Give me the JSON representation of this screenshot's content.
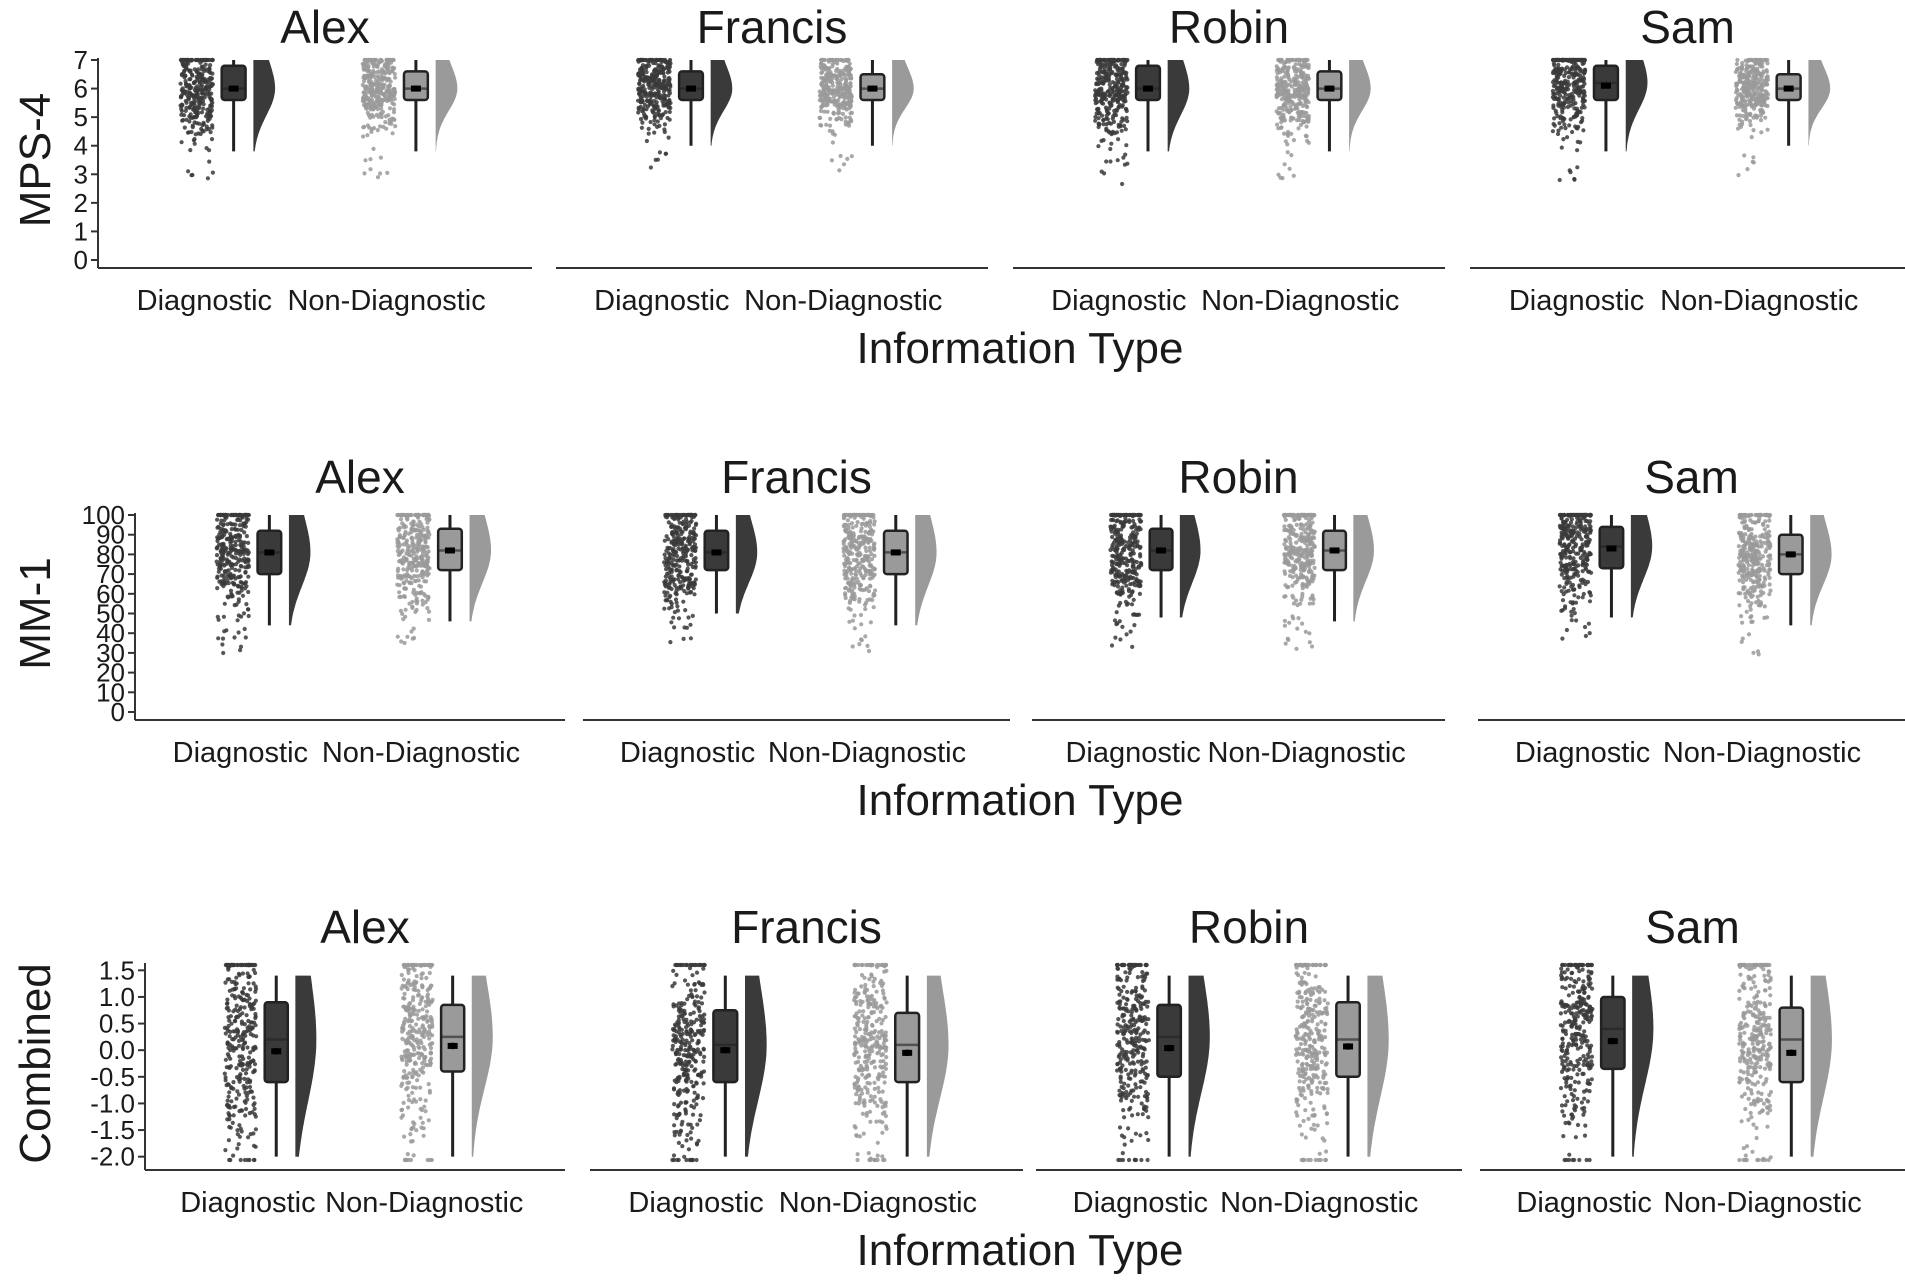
{
  "figure": {
    "x_axis_title": "Information Type",
    "categories": [
      "Diagnostic",
      "Non-Diagnostic"
    ],
    "panel_names": [
      "Alex",
      "Francis",
      "Robin",
      "Sam"
    ],
    "colors": {
      "diagnostic": "#3a3a3a",
      "non_diagnostic": "#9a9a9a",
      "axis": "#333333"
    }
  },
  "chart_data": [
    {
      "type": "raincloud",
      "ylabel": "MPS-4",
      "xlabel": "Information Type",
      "ylim": [
        0,
        7
      ],
      "yticks": [
        "0",
        "1",
        "2",
        "3",
        "4",
        "5",
        "6",
        "7"
      ],
      "tick_values": [
        0,
        1,
        2,
        3,
        4,
        5,
        6,
        7
      ],
      "categories": [
        "Diagnostic",
        "Non-Diagnostic"
      ],
      "panels": [
        {
          "name": "Alex",
          "series": [
            {
              "category": "Diagnostic",
              "min": 3.8,
              "q1": 5.6,
              "median": 6.0,
              "q3": 6.8,
              "max": 7.0,
              "mean": 6.0,
              "se": 0.1
            },
            {
              "category": "Non-Diagnostic",
              "min": 3.8,
              "q1": 5.6,
              "median": 6.0,
              "q3": 6.6,
              "max": 7.0,
              "mean": 6.0,
              "se": 0.1
            }
          ]
        },
        {
          "name": "Francis",
          "series": [
            {
              "category": "Diagnostic",
              "min": 4.0,
              "q1": 5.6,
              "median": 6.0,
              "q3": 6.6,
              "max": 7.0,
              "mean": 6.0,
              "se": 0.1
            },
            {
              "category": "Non-Diagnostic",
              "min": 4.0,
              "q1": 5.6,
              "median": 6.0,
              "q3": 6.5,
              "max": 7.0,
              "mean": 6.0,
              "se": 0.1
            }
          ]
        },
        {
          "name": "Robin",
          "series": [
            {
              "category": "Diagnostic",
              "min": 3.8,
              "q1": 5.6,
              "median": 6.0,
              "q3": 6.8,
              "max": 7.0,
              "mean": 6.0,
              "se": 0.1
            },
            {
              "category": "Non-Diagnostic",
              "min": 3.8,
              "q1": 5.6,
              "median": 6.0,
              "q3": 6.6,
              "max": 7.0,
              "mean": 6.0,
              "se": 0.1
            }
          ]
        },
        {
          "name": "Sam",
          "series": [
            {
              "category": "Diagnostic",
              "min": 3.8,
              "q1": 5.6,
              "median": 6.2,
              "q3": 6.8,
              "max": 7.0,
              "mean": 6.1,
              "se": 0.1
            },
            {
              "category": "Non-Diagnostic",
              "min": 4.0,
              "q1": 5.6,
              "median": 6.0,
              "q3": 6.5,
              "max": 7.0,
              "mean": 6.0,
              "se": 0.1
            }
          ]
        }
      ]
    },
    {
      "type": "raincloud",
      "ylabel": "MM-1",
      "xlabel": "Information Type",
      "ylim": [
        0,
        100
      ],
      "yticks": [
        "0",
        "10",
        "20",
        "30",
        "40",
        "50",
        "60",
        "70",
        "80",
        "90",
        "100"
      ],
      "tick_values": [
        0,
        10,
        20,
        30,
        40,
        50,
        60,
        70,
        80,
        90,
        100
      ],
      "categories": [
        "Diagnostic",
        "Non-Diagnostic"
      ],
      "panels": [
        {
          "name": "Alex",
          "series": [
            {
              "category": "Diagnostic",
              "min": 44,
              "q1": 70,
              "median": 81,
              "q3": 92,
              "max": 100,
              "mean": 81,
              "se": 1.5
            },
            {
              "category": "Non-Diagnostic",
              "min": 46,
              "q1": 72,
              "median": 82,
              "q3": 93,
              "max": 100,
              "mean": 82,
              "se": 1.5
            }
          ]
        },
        {
          "name": "Francis",
          "series": [
            {
              "category": "Diagnostic",
              "min": 50,
              "q1": 72,
              "median": 81,
              "q3": 92,
              "max": 100,
              "mean": 81,
              "se": 1.5
            },
            {
              "category": "Non-Diagnostic",
              "min": 44,
              "q1": 70,
              "median": 81,
              "q3": 92,
              "max": 100,
              "mean": 81,
              "se": 1.5
            }
          ]
        },
        {
          "name": "Robin",
          "series": [
            {
              "category": "Diagnostic",
              "min": 48,
              "q1": 72,
              "median": 82,
              "q3": 93,
              "max": 100,
              "mean": 82,
              "se": 1.5
            },
            {
              "category": "Non-Diagnostic",
              "min": 46,
              "q1": 72,
              "median": 82,
              "q3": 92,
              "max": 100,
              "mean": 82,
              "se": 1.5
            }
          ]
        },
        {
          "name": "Sam",
          "series": [
            {
              "category": "Diagnostic",
              "min": 48,
              "q1": 73,
              "median": 84,
              "q3": 94,
              "max": 100,
              "mean": 83,
              "se": 1.5
            },
            {
              "category": "Non-Diagnostic",
              "min": 44,
              "q1": 70,
              "median": 80,
              "q3": 90,
              "max": 100,
              "mean": 80,
              "se": 1.5
            }
          ]
        }
      ]
    },
    {
      "type": "raincloud",
      "ylabel": "Combined",
      "xlabel": "Information Type",
      "ylim": [
        -2.1,
        1.6
      ],
      "yticks": [
        "-2.0",
        "-1.5",
        "-1.0",
        "-0.5",
        "0.0",
        "0.5",
        "1.0",
        "1.5"
      ],
      "tick_values": [
        -2.0,
        -1.5,
        -1.0,
        -0.5,
        0.0,
        0.5,
        1.0,
        1.5
      ],
      "categories": [
        "Diagnostic",
        "Non-Diagnostic"
      ],
      "panels": [
        {
          "name": "Alex",
          "series": [
            {
              "category": "Diagnostic",
              "min": -2.0,
              "q1": -0.6,
              "median": 0.2,
              "q3": 0.9,
              "max": 1.4,
              "mean": -0.02,
              "se": 0.06
            },
            {
              "category": "Non-Diagnostic",
              "min": -2.0,
              "q1": -0.4,
              "median": 0.25,
              "q3": 0.85,
              "max": 1.4,
              "mean": 0.08,
              "se": 0.06
            }
          ]
        },
        {
          "name": "Francis",
          "series": [
            {
              "category": "Diagnostic",
              "min": -2.0,
              "q1": -0.6,
              "median": 0.1,
              "q3": 0.75,
              "max": 1.4,
              "mean": 0.0,
              "se": 0.06
            },
            {
              "category": "Non-Diagnostic",
              "min": -2.0,
              "q1": -0.6,
              "median": 0.1,
              "q3": 0.7,
              "max": 1.4,
              "mean": -0.05,
              "se": 0.06
            }
          ]
        },
        {
          "name": "Robin",
          "series": [
            {
              "category": "Diagnostic",
              "min": -2.0,
              "q1": -0.5,
              "median": 0.25,
              "q3": 0.85,
              "max": 1.4,
              "mean": 0.04,
              "se": 0.06
            },
            {
              "category": "Non-Diagnostic",
              "min": -2.0,
              "q1": -0.5,
              "median": 0.2,
              "q3": 0.9,
              "max": 1.4,
              "mean": 0.07,
              "se": 0.06
            }
          ]
        },
        {
          "name": "Sam",
          "series": [
            {
              "category": "Diagnostic",
              "min": -2.0,
              "q1": -0.35,
              "median": 0.4,
              "q3": 1.0,
              "max": 1.4,
              "mean": 0.17,
              "se": 0.06
            },
            {
              "category": "Non-Diagnostic",
              "min": -2.0,
              "q1": -0.6,
              "median": 0.2,
              "q3": 0.8,
              "max": 1.4,
              "mean": -0.05,
              "se": 0.06
            }
          ]
        }
      ]
    }
  ]
}
